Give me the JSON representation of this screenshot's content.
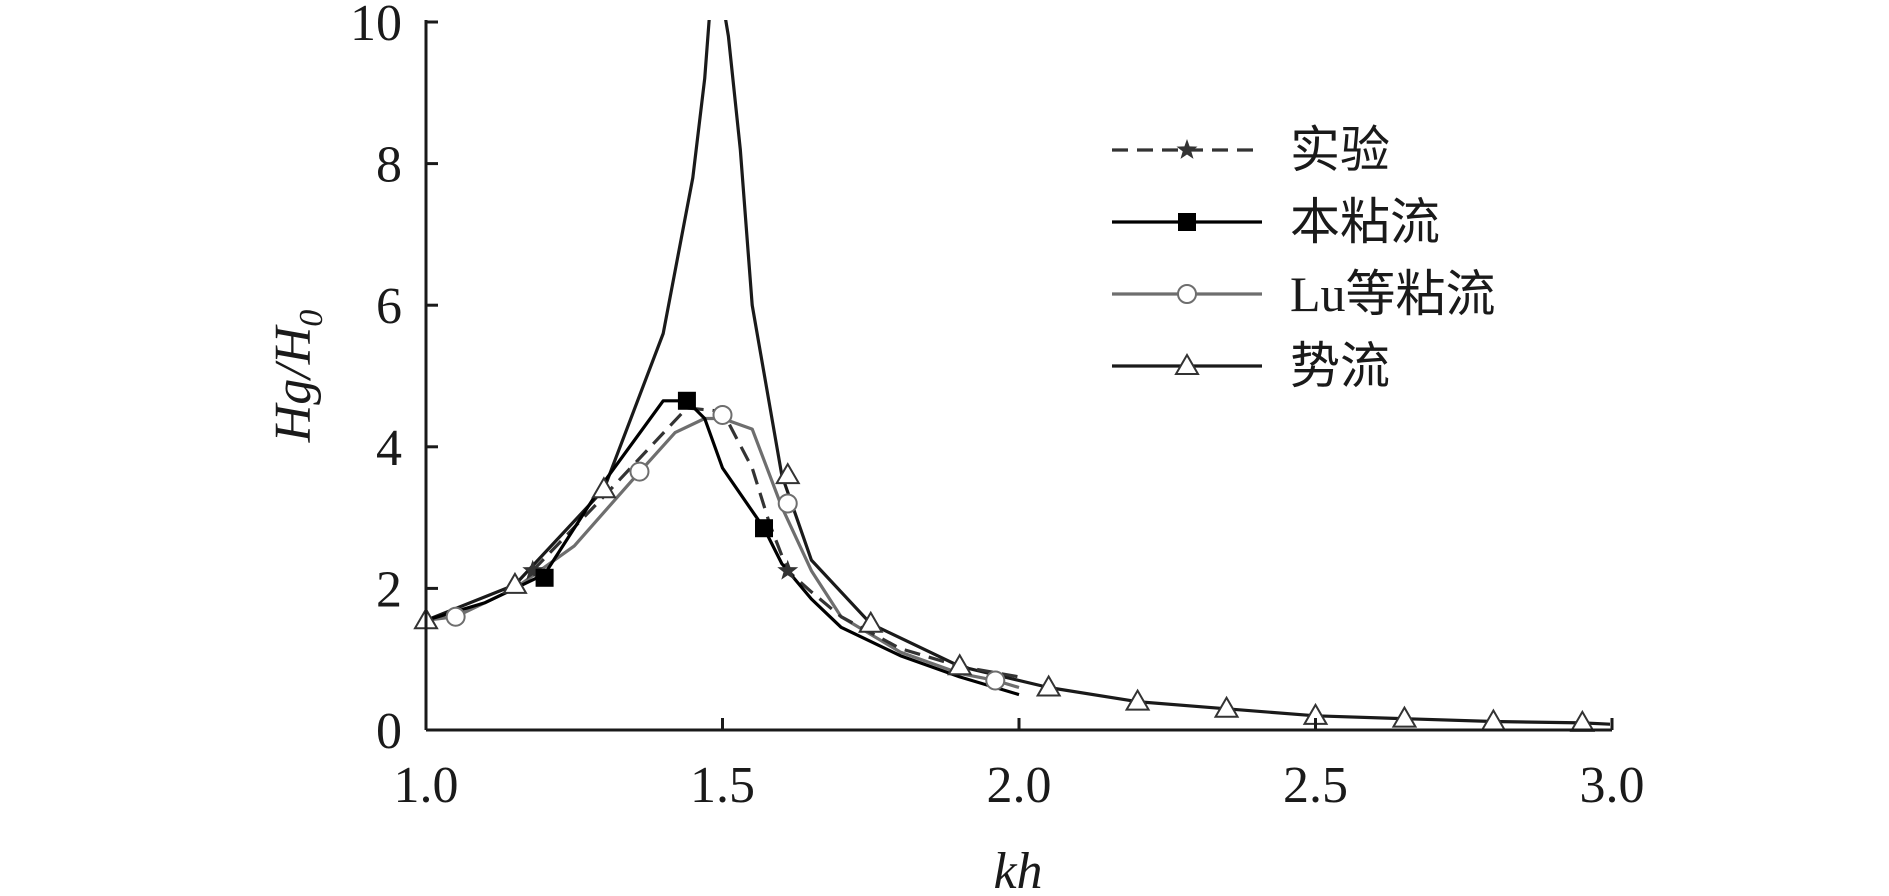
{
  "chart_data": {
    "type": "line",
    "xlabel": "kh",
    "ylabel": {
      "main": "Hg/H",
      "sub": "0"
    },
    "xlim": [
      1.0,
      3.0
    ],
    "ylim": [
      0,
      10
    ],
    "xticks": [
      1.0,
      1.5,
      2.0,
      2.5,
      3.0
    ],
    "xtick_labels": [
      "1.0",
      "1.5",
      "2.0",
      "2.5",
      "3.0"
    ],
    "yticks": [
      0,
      2,
      4,
      6,
      8,
      10
    ],
    "ytick_labels": [
      "0",
      "2",
      "4",
      "6",
      "8",
      "10"
    ],
    "grid": false,
    "legend_position": "top-right",
    "series": [
      {
        "name": "实验",
        "style": "dashed",
        "marker": "star",
        "color": "#333333",
        "x": [
          1.18,
          1.3,
          1.44,
          1.5,
          1.55,
          1.58,
          1.61,
          1.65,
          1.7,
          1.8,
          1.9,
          2.0
        ],
        "y": [
          2.25,
          3.3,
          4.55,
          4.5,
          3.7,
          2.9,
          2.25,
          1.95,
          1.6,
          1.15,
          0.9,
          0.75
        ],
        "marker_x": [
          1.18,
          1.61
        ],
        "marker_y": [
          2.25,
          2.25
        ]
      },
      {
        "name": "本粘流",
        "style": "solid",
        "marker": "square",
        "color": "#000000",
        "x": [
          1.0,
          1.1,
          1.2,
          1.3,
          1.4,
          1.44,
          1.47,
          1.5,
          1.57,
          1.6,
          1.65,
          1.7,
          1.8,
          1.9,
          2.0
        ],
        "y": [
          1.55,
          1.8,
          2.2,
          3.5,
          4.65,
          4.65,
          4.4,
          3.7,
          2.85,
          2.35,
          1.85,
          1.45,
          1.05,
          0.75,
          0.5
        ],
        "marker_x": [
          1.2,
          1.44,
          1.57
        ],
        "marker_y": [
          2.15,
          4.65,
          2.85
        ]
      },
      {
        "name": "Lu等粘流",
        "style": "solid",
        "marker": "circle",
        "color": "#6e6e6e",
        "x": [
          1.0,
          1.05,
          1.15,
          1.25,
          1.35,
          1.42,
          1.47,
          1.5,
          1.55,
          1.6,
          1.65,
          1.7,
          1.8,
          1.9,
          1.96,
          2.0
        ],
        "y": [
          1.55,
          1.6,
          2.0,
          2.6,
          3.55,
          4.2,
          4.4,
          4.4,
          4.25,
          3.15,
          2.25,
          1.6,
          1.1,
          0.8,
          0.7,
          0.6
        ],
        "marker_x": [
          1.05,
          1.36,
          1.5,
          1.61,
          1.96
        ],
        "marker_y": [
          1.6,
          3.65,
          4.45,
          3.2,
          0.7
        ]
      },
      {
        "name": "势流",
        "style": "solid",
        "marker": "triangle",
        "color": "#1a1a1a",
        "x": [
          1.0,
          1.15,
          1.3,
          1.4,
          1.45,
          1.47,
          1.48,
          1.5,
          1.51,
          1.53,
          1.55,
          1.6,
          1.65,
          1.75,
          1.9,
          2.05,
          2.2,
          2.35,
          2.5,
          2.65,
          2.8,
          2.95,
          3.0
        ],
        "y": [
          1.55,
          2.05,
          3.4,
          5.6,
          7.8,
          9.2,
          10.3,
          10.3,
          9.8,
          8.2,
          6.0,
          3.6,
          2.4,
          1.5,
          0.9,
          0.6,
          0.4,
          0.3,
          0.2,
          0.16,
          0.12,
          0.1,
          0.08
        ],
        "marker_x": [
          1.0,
          1.15,
          1.3,
          1.61,
          1.75,
          1.9,
          2.05,
          2.2,
          2.35,
          2.5,
          2.65,
          2.8,
          2.95
        ],
        "marker_y": [
          1.55,
          2.05,
          3.4,
          3.6,
          1.5,
          0.9,
          0.6,
          0.4,
          0.3,
          0.2,
          0.16,
          0.12,
          0.1
        ]
      }
    ]
  }
}
